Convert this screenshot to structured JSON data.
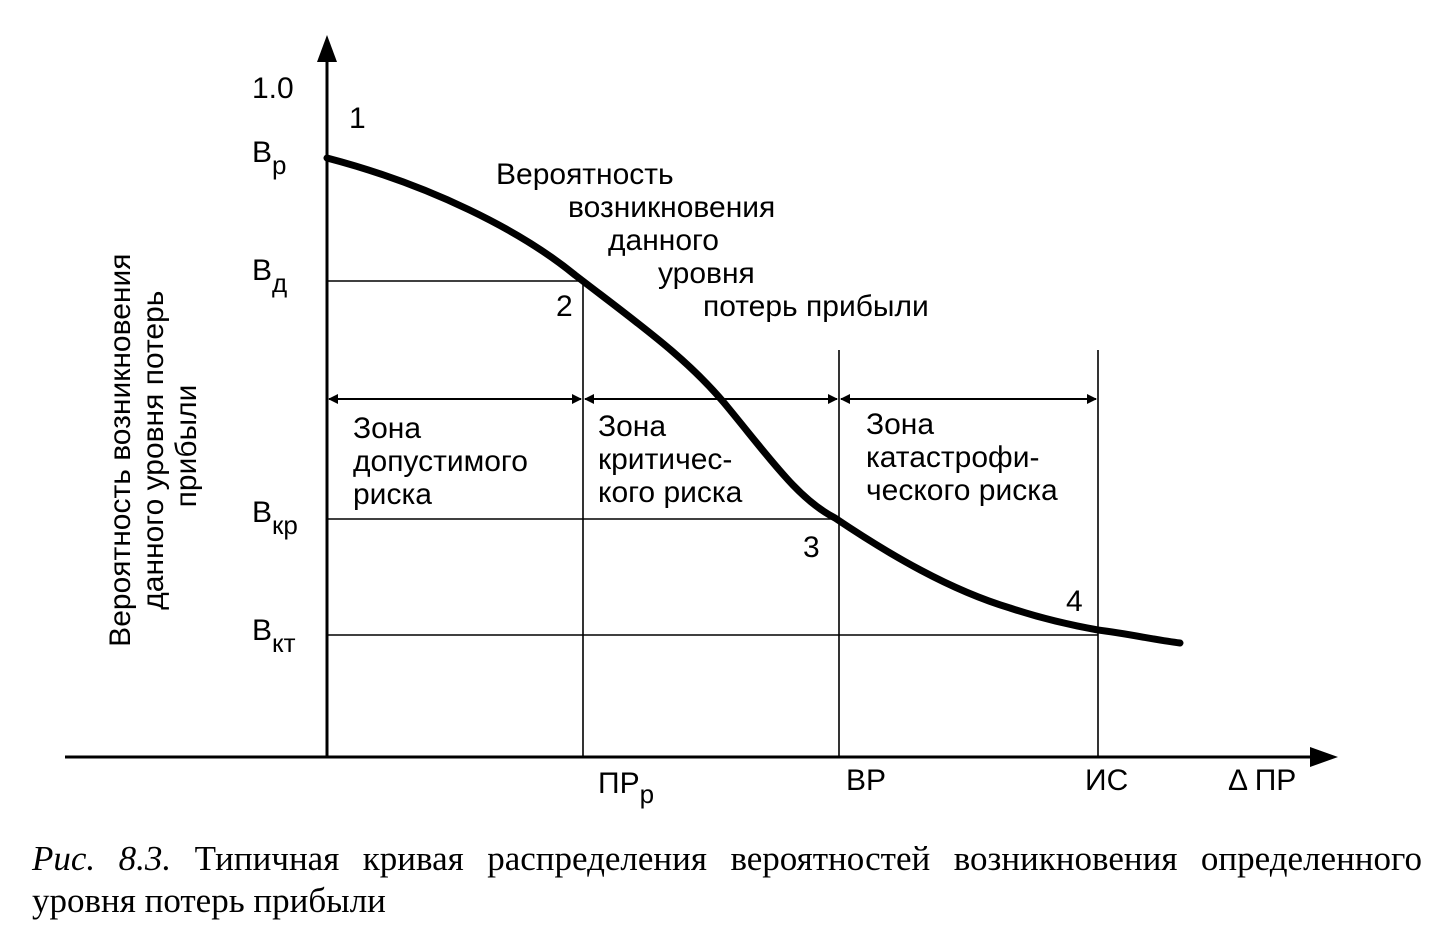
{
  "axis": {
    "y_title": [
      "Вероятность возникновения",
      "данного уровня потерь",
      "прибыли"
    ],
    "y_ticks": {
      "one": "1.0",
      "b_r": {
        "base": "В",
        "sub": "р"
      },
      "b_d": {
        "base": "В",
        "sub": "д"
      },
      "b_kr": {
        "base": "В",
        "sub": "кр"
      },
      "b_kt": {
        "base": "В",
        "sub": "кт"
      }
    },
    "x_ticks": {
      "pr_r": {
        "base": "ПР",
        "sub": "р"
      },
      "vr": "ВР",
      "is": "ИС",
      "delta_pr": "Δ ПР"
    }
  },
  "points": {
    "p1": "1",
    "p2": "2",
    "p3": "3",
    "p4": "4"
  },
  "curve_label": [
    "Вероятность",
    "возникновения",
    "данного",
    "уровня",
    "потерь прибыли"
  ],
  "zones": {
    "acceptable": [
      "Зона",
      "допустимого",
      "риска"
    ],
    "critical": [
      "Зона",
      "критичес-",
      "кого риска"
    ],
    "catastrophic": [
      "Зона",
      "катастрофи-",
      "ческого риска"
    ]
  },
  "caption": {
    "number": "Рис. 8.3.",
    "text": "Типичная кривая распределения вероятностей возникновения определенного уровня потерь прибыли"
  }
}
